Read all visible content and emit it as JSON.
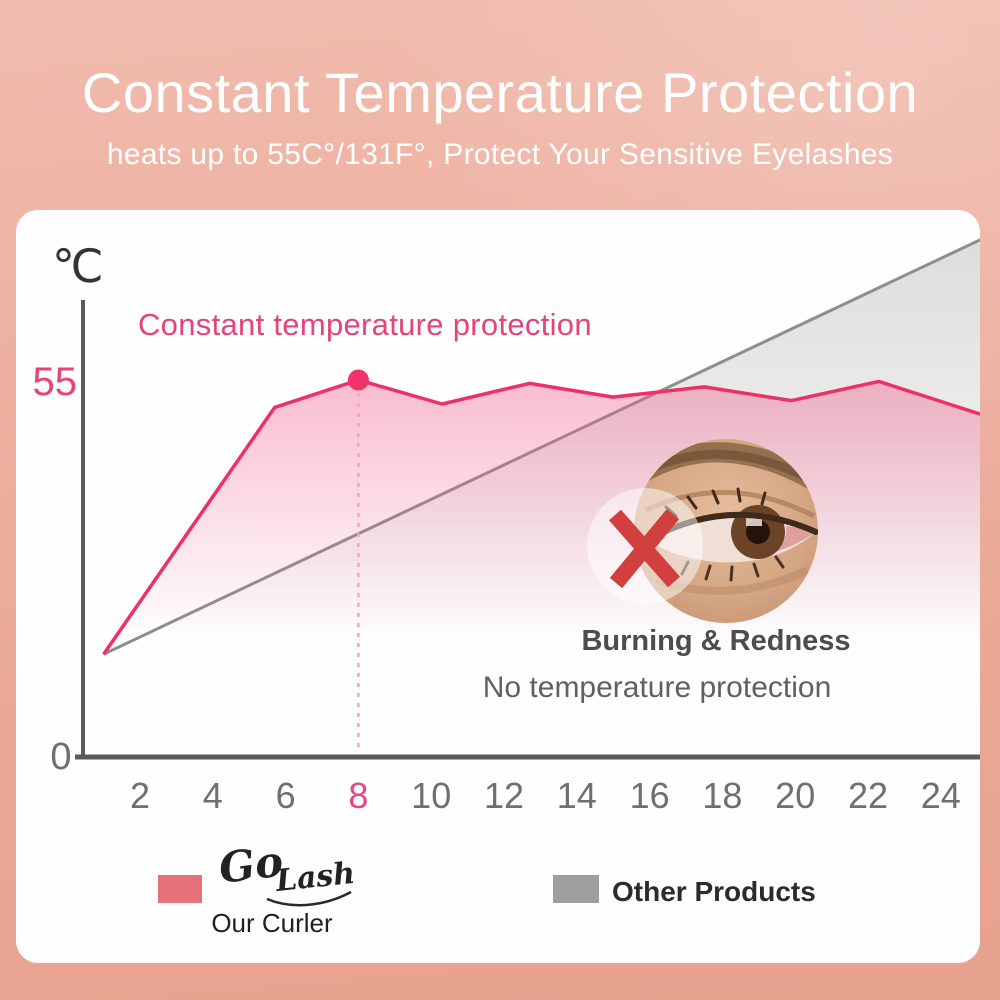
{
  "header": {
    "title": "Constant Temperature Protection",
    "subtitle": "heats up to 55C°/131F°, Protect Your Sensitive Eyelashes"
  },
  "chart": {
    "unit_label": "℃",
    "y_max_label": "55",
    "y_zero_label": "0",
    "series_label": "Constant temperature protection",
    "annotation": {
      "line1": "Burning & Redness",
      "line2": "No temperature protection"
    }
  },
  "legend": {
    "our": {
      "logo_word1": "Go",
      "logo_word2": "Lash",
      "label": "Our Curler",
      "color": "#e87279"
    },
    "other": {
      "label": "Other Products",
      "color": "#9e9e9e"
    }
  },
  "colors": {
    "accent_pink_line": "#ed3066",
    "pink_text": "#e5447a",
    "gray_line": "#8e8e8e",
    "axis_gray": "#5a5a5a",
    "tick_gray": "#6f6f6f",
    "background_top": "#f1bcae",
    "background_bottom": "#e7a28e",
    "cross_red": "#d23f3f"
  },
  "chart_data": {
    "type": "area",
    "title": "Constant temperature protection",
    "ylabel": "℃",
    "xlabel": "",
    "xlim": [
      1,
      25.2
    ],
    "ylim": [
      0,
      80
    ],
    "y_ticks_labeled": [
      0,
      55
    ],
    "x_ticks": [
      2,
      4,
      6,
      8,
      10,
      12,
      14,
      16,
      18,
      20,
      22,
      24
    ],
    "highlighted_x_tick": 8,
    "grid": false,
    "legend_position": "bottom",
    "series": [
      {
        "name": "Our Curler (constant temperature protection)",
        "color": "#ed3066",
        "points": [
          [
            1,
            15
          ],
          [
            5.7,
            51
          ],
          [
            8,
            55
          ],
          [
            10.3,
            51.5
          ],
          [
            12.7,
            54.5
          ],
          [
            15,
            52.5
          ],
          [
            17.5,
            54
          ],
          [
            19.9,
            52
          ],
          [
            22.3,
            54.8
          ],
          [
            25.1,
            50
          ]
        ]
      },
      {
        "name": "Other Products (no temperature protection)",
        "color": "#8e8e8e",
        "points": [
          [
            1,
            15
          ],
          [
            25.1,
            75.5
          ]
        ]
      }
    ],
    "peak_marker": {
      "x": 8,
      "y": 55,
      "dashed_drop_line": true
    }
  }
}
